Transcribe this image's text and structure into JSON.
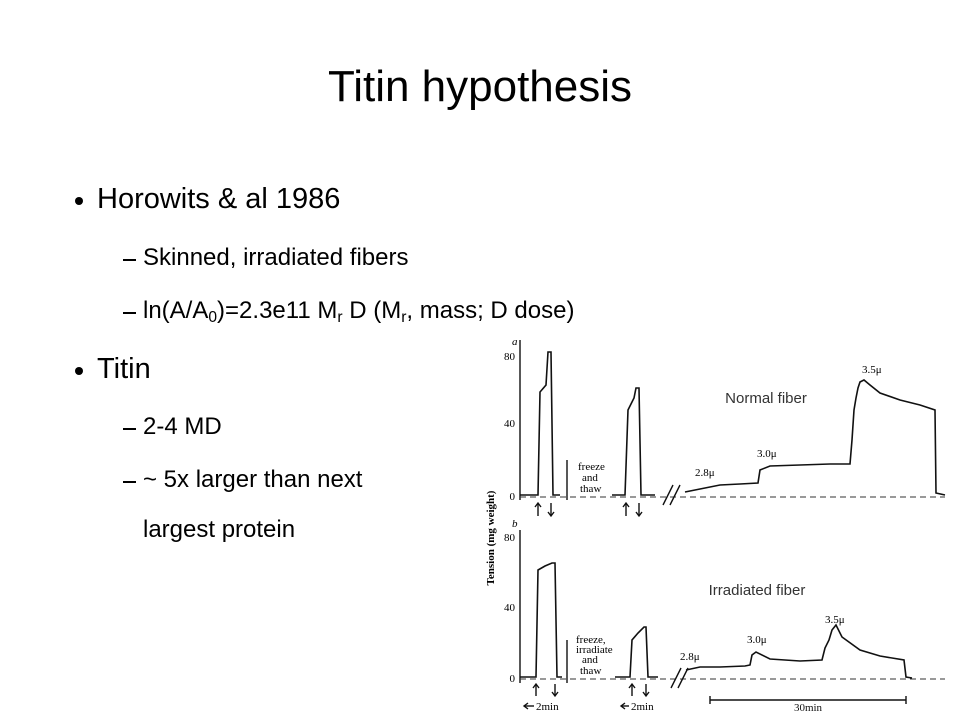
{
  "header": {
    "title": "Titin hypothesis"
  },
  "bullets": [
    {
      "text": "Horowits & al 1986",
      "sub": [
        {
          "parts": [
            "Skinned, irradiated fibers"
          ]
        },
        {
          "parts": [
            "ln(A/A",
            "0",
            ")=2.3e11  M",
            "r",
            " D (M",
            "r",
            ", mass; D dose)"
          ]
        }
      ]
    },
    {
      "text": "Titin",
      "sub": [
        {
          "parts": [
            "2-4 MD"
          ]
        },
        {
          "parts": [
            "~ 5x larger than next"
          ],
          "cont": "largest protein"
        }
      ]
    }
  ],
  "figure": {
    "y_label": "Tension (mg weight)",
    "panels": [
      {
        "letter": "a",
        "yticks": [
          "80",
          "40",
          "0"
        ],
        "treatment": [
          "freeze",
          "and",
          "thaw"
        ],
        "lengths": [
          "2.8μ",
          "3.0μ",
          "3.5μ"
        ],
        "caption": "Normal fiber"
      },
      {
        "letter": "b",
        "yticks": [
          "80",
          "40",
          "0"
        ],
        "treatment": [
          "freeze,",
          "irradiate",
          "and",
          "thaw"
        ],
        "lengths": [
          "2.8μ",
          "3.0μ",
          "3.5μ"
        ],
        "caption": "Irradiated fiber"
      }
    ],
    "time_labels": [
      "2min",
      "2min",
      "30min"
    ]
  }
}
